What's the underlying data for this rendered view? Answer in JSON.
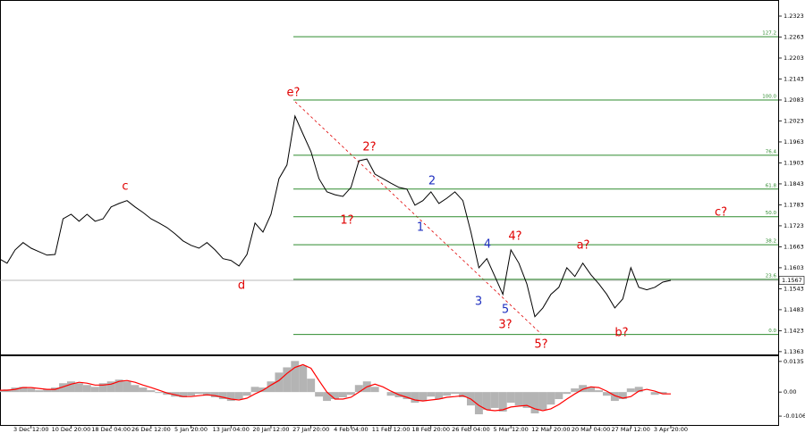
{
  "chart_data": [
    {
      "type": "line",
      "categories": [
        null,
        null,
        null,
        null,
        "3 Dec 12:00",
        null,
        null,
        null,
        null,
        "10 Dec 20:00",
        null,
        null,
        null,
        null,
        "18 Dec 04:00",
        null,
        null,
        null,
        null,
        "26 Dec 12:00",
        null,
        null,
        null,
        null,
        "5 Jan 20:00",
        null,
        null,
        null,
        null,
        "13 Jan 04:00",
        null,
        null,
        null,
        null,
        "20 Jan 12:00",
        null,
        null,
        null,
        null,
        "27 Jan 20:00",
        null,
        null,
        null,
        null,
        "4 Feb 04:00",
        null,
        null,
        null,
        null,
        "11 Feb 12:00",
        null,
        null,
        null,
        null,
        "18 Feb 20:00",
        null,
        null,
        null,
        null,
        "26 Feb 04:00",
        null,
        null,
        null,
        null,
        "5 Mar 12:00",
        null,
        null,
        null,
        null,
        "12 Mar 20:00",
        null,
        null,
        null,
        null,
        "20 Mar 04:00",
        null,
        null,
        null,
        null,
        "27 Mar 12:00",
        null,
        null,
        null,
        null,
        "3 Apr 20:00"
      ],
      "series": [
        {
          "color": "#000000",
          "values": [
            1.1629,
            1.1616,
            1.1654,
            1.1675,
            1.1659,
            1.1649,
            1.1639,
            1.1641,
            1.1743,
            1.1756,
            1.1736,
            1.1756,
            1.1736,
            1.1743,
            1.1777,
            1.1787,
            1.1795,
            1.1777,
            1.1761,
            1.1743,
            1.1731,
            1.1718,
            1.17,
            1.168,
            1.1667,
            1.1659,
            1.1675,
            1.1654,
            1.1629,
            1.1624,
            1.1608,
            1.1641,
            1.1731,
            1.1705,
            1.1756,
            1.1858,
            1.1897,
            1.2037,
            1.1986,
            1.1935,
            1.1858,
            1.182,
            1.1812,
            1.1807,
            1.1833,
            1.1909,
            1.1914,
            1.1871,
            1.1858,
            1.1845,
            1.1833,
            1.1828,
            1.1782,
            1.1795,
            1.182,
            1.1787,
            1.1802,
            1.182,
            1.1795,
            1.1705,
            1.1603,
            1.1629,
            1.1578,
            1.1527,
            1.1654,
            1.1616,
            1.1557,
            1.1463,
            1.1488,
            1.1527,
            1.1547,
            1.1603,
            1.1578,
            1.1616,
            1.1583,
            1.1557,
            1.1527,
            1.1488,
            1.1514,
            1.1603,
            1.1547,
            1.154,
            1.1547,
            1.1562,
            1.1567
          ]
        }
      ],
      "ylim": [
        1.1355,
        1.2369
      ],
      "yticks": [
        1.2323,
        1.2263,
        1.2203,
        1.2143,
        1.2083,
        1.2023,
        1.1963,
        1.1903,
        1.1843,
        1.1783,
        1.1723,
        1.1663,
        1.1603,
        1.1543,
        1.1483,
        1.1423,
        1.1363
      ],
      "last_price": 1.1567,
      "fib_color": "#2e8b2e",
      "fib_levels": [
        {
          "label": "127.2",
          "value": 1.2264
        },
        {
          "label": "100.0",
          "value": 1.2083
        },
        {
          "label": "76.4",
          "value": 1.1925
        },
        {
          "label": "61.8",
          "value": 1.1828
        },
        {
          "label": "50.0",
          "value": 1.1749
        },
        {
          "label": "38.2",
          "value": 1.1669
        },
        {
          "label": "23.6",
          "value": 1.157
        },
        {
          "label": "0.0",
          "value": 1.1412
        }
      ],
      "annotations": [
        {
          "text": "e?",
          "color": "#e00000"
        },
        {
          "text": "c",
          "color": "#e00000"
        },
        {
          "text": "d",
          "color": "#e00000"
        },
        {
          "text": "2?",
          "color": "#e00000"
        },
        {
          "text": "1?",
          "color": "#e00000"
        },
        {
          "text": "4?",
          "color": "#e00000"
        },
        {
          "text": "3?",
          "color": "#e00000"
        },
        {
          "text": "5?",
          "color": "#e00000"
        },
        {
          "text": "a?",
          "color": "#e00000"
        },
        {
          "text": "b?",
          "color": "#e00000"
        },
        {
          "text": "c?",
          "color": "#e00000"
        },
        {
          "text": "1",
          "color": "#2030c0"
        },
        {
          "text": "2",
          "color": "#2030c0"
        },
        {
          "text": "3",
          "color": "#2030c0"
        },
        {
          "text": "4",
          "color": "#2030c0"
        },
        {
          "text": "5",
          "color": "#2030c0"
        }
      ]
    },
    {
      "type": "bar",
      "series": [
        {
          "color": "#b4b4b4",
          "values": [
            0.0008,
            0.0012,
            0.002,
            0.0023,
            0.0016,
            0.0008,
            0.0012,
            0.002,
            0.0039,
            0.0047,
            0.0039,
            0.0031,
            0.0023,
            0.0039,
            0.0047,
            0.0055,
            0.0047,
            0.0031,
            0.002,
            0.0008,
            -0.0004,
            -0.0012,
            -0.002,
            -0.0023,
            -0.0016,
            -0.0008,
            -0.0016,
            -0.0023,
            -0.0031,
            -0.0039,
            -0.0031,
            -0.0016,
            0.0023,
            0.002,
            0.0047,
            0.0086,
            0.0109,
            0.0137,
            0.0117,
            0.0059,
            -0.002,
            -0.0039,
            -0.0031,
            -0.0023,
            -0.0012,
            0.0031,
            0.0047,
            0.0023,
            0,
            -0.0016,
            -0.0023,
            -0.0031,
            -0.0047,
            -0.0039,
            -0.002,
            -0.0031,
            -0.0016,
            -0.0008,
            -0.0023,
            -0.0059,
            -0.0098,
            -0.0078,
            -0.007,
            -0.0086,
            -0.0047,
            -0.0059,
            -0.007,
            -0.0094,
            -0.0078,
            -0.0055,
            -0.0031,
            -0.0008,
            0.0016,
            0.0031,
            0.0023,
            0.0008,
            -0.0016,
            -0.0039,
            -0.0031,
            0.0016,
            0.0023,
            0,
            -0.0012,
            -0.0008,
            0
          ]
        },
        {
          "color": "#ff0000",
          "type": "line",
          "values": [
            0.0008,
            0.0008,
            0.0012,
            0.002,
            0.002,
            0.0016,
            0.0012,
            0.0012,
            0.0023,
            0.0035,
            0.0043,
            0.0039,
            0.0031,
            0.0031,
            0.0035,
            0.0047,
            0.0051,
            0.0043,
            0.0031,
            0.002,
            0.0008,
            -0.0004,
            -0.0012,
            -0.002,
            -0.002,
            -0.0016,
            -0.0012,
            -0.0016,
            -0.0023,
            -0.0031,
            -0.0035,
            -0.0027,
            -0.0008,
            0.0008,
            0.0031,
            0.0051,
            0.0082,
            0.0109,
            0.0121,
            0.0105,
            0.0051,
            0,
            -0.0031,
            -0.0031,
            -0.0023,
            0,
            0.0023,
            0.0035,
            0.0023,
            0.0004,
            -0.0012,
            -0.0023,
            -0.0035,
            -0.0039,
            -0.0035,
            -0.0031,
            -0.0023,
            -0.002,
            -0.0016,
            -0.0031,
            -0.0059,
            -0.0078,
            -0.0082,
            -0.0078,
            -0.0066,
            -0.0062,
            -0.0059,
            -0.0074,
            -0.0082,
            -0.0074,
            -0.0055,
            -0.0031,
            -0.0008,
            0.0012,
            0.0023,
            0.002,
            0.0004,
            -0.0016,
            -0.0027,
            -0.002,
            0.0004,
            0.0012,
            0.0004,
            -0.0008,
            -0.0008
          ]
        }
      ],
      "ylim": [
        -0.0149,
        0.0162
      ],
      "yticks": [
        0.0135,
        {
          "value": 0,
          "label": "0.00"
        },
        -0.0106
      ]
    }
  ]
}
